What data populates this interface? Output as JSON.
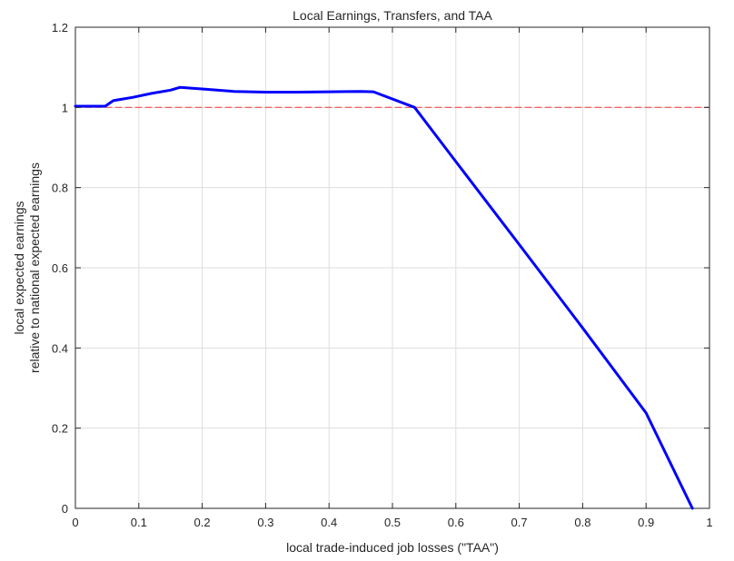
{
  "chart_data": {
    "type": "line",
    "title": "Local Earnings, Transfers, and TAA",
    "xlabel": "local trade-induced job losses (\"TAA\")",
    "ylabel": [
      "local expected earnings",
      "relative to national expected earnings"
    ],
    "xlim": [
      0,
      1
    ],
    "ylim": [
      0,
      1.2
    ],
    "x_ticks": [
      "0",
      "0.1",
      "0.2",
      "0.3",
      "0.4",
      "0.5",
      "0.6",
      "0.7",
      "0.8",
      "0.9",
      "1"
    ],
    "y_ticks": [
      "0",
      "0.2",
      "0.4",
      "0.6",
      "0.8",
      "1",
      "1.2"
    ],
    "grid": true,
    "series": [
      {
        "color": "#0000ff",
        "style": "solid",
        "x": [
          0,
          0.02,
          0.047,
          0.06,
          0.09,
          0.12,
          0.15,
          0.165,
          0.2,
          0.25,
          0.3,
          0.35,
          0.4,
          0.45,
          0.47,
          0.535,
          0.6,
          0.7,
          0.8,
          0.9,
          0.973
        ],
        "y": [
          1.003,
          1.003,
          1.003,
          1.017,
          1.025,
          1.035,
          1.043,
          1.05,
          1.046,
          1.04,
          1.038,
          1.038,
          1.039,
          1.04,
          1.039,
          1.0,
          0.865,
          0.658,
          0.45,
          0.238,
          0.0
        ]
      },
      {
        "color": "#ff0000",
        "style": "dashed",
        "x": [
          0,
          1
        ],
        "y": [
          1,
          1
        ]
      }
    ]
  }
}
